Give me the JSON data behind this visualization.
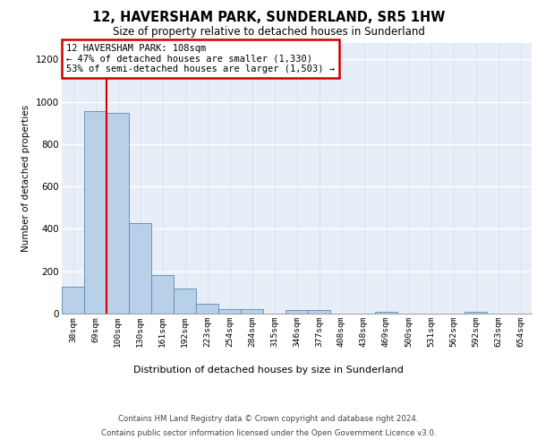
{
  "title": "12, HAVERSHAM PARK, SUNDERLAND, SR5 1HW",
  "subtitle": "Size of property relative to detached houses in Sunderland",
  "xlabel": "Distribution of detached houses by size in Sunderland",
  "ylabel": "Number of detached properties",
  "categories": [
    "38sqm",
    "69sqm",
    "100sqm",
    "130sqm",
    "161sqm",
    "192sqm",
    "223sqm",
    "254sqm",
    "284sqm",
    "315sqm",
    "346sqm",
    "377sqm",
    "408sqm",
    "438sqm",
    "469sqm",
    "500sqm",
    "531sqm",
    "562sqm",
    "592sqm",
    "623sqm",
    "654sqm"
  ],
  "values": [
    127,
    955,
    947,
    428,
    183,
    120,
    45,
    20,
    20,
    0,
    18,
    17,
    0,
    0,
    10,
    0,
    0,
    0,
    10,
    0,
    0
  ],
  "bar_color": "#b8d0e8",
  "bar_edge_color": "#5a8ab5",
  "vline_x": 1.5,
  "vline_color": "#cc0000",
  "annotation_box_text": "12 HAVERSHAM PARK: 108sqm\n← 47% of detached houses are smaller (1,330)\n53% of semi-detached houses are larger (1,503) →",
  "annotation_box_color": "#cc0000",
  "ylim": [
    0,
    1280
  ],
  "yticks": [
    0,
    200,
    400,
    600,
    800,
    1000,
    1200
  ],
  "grid_color": "#d0d8e8",
  "background_color": "#e8eef8",
  "footer_line1": "Contains HM Land Registry data © Crown copyright and database right 2024.",
  "footer_line2": "Contains public sector information licensed under the Open Government Licence v3.0."
}
